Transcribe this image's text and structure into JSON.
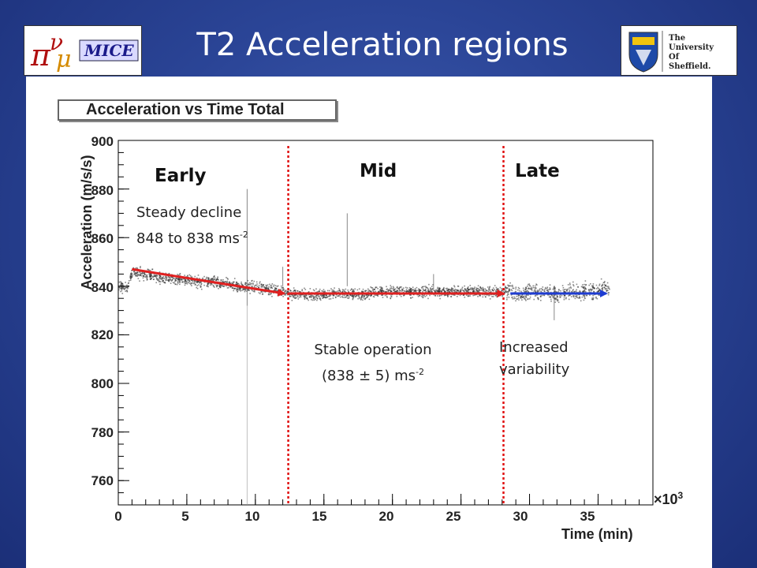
{
  "slide": {
    "title": "T2 Acceleration regions",
    "logo_left_text": "MICE",
    "logo_right_text": [
      "The",
      "University",
      "Of",
      "Sheffield."
    ]
  },
  "chart_data": {
    "type": "scatter",
    "title": "Acceleration vs Time Total",
    "xlabel": "Time (min)",
    "ylabel": "Acceleration (m/s/s)",
    "x_multiplier_label": "×10",
    "x_multiplier_exp": "3",
    "xlim": [
      0,
      39
    ],
    "ylim": [
      750,
      900
    ],
    "xticks": [
      "0",
      "5",
      "10",
      "15",
      "20",
      "25",
      "30",
      "35"
    ],
    "yticks": [
      "760",
      "780",
      "800",
      "820",
      "840",
      "860",
      "880",
      "900"
    ],
    "regions": [
      {
        "name": "Early",
        "start": 0,
        "end": 12.4
      },
      {
        "name": "Mid",
        "start": 12.4,
        "end": 28.1
      },
      {
        "name": "Late",
        "start": 28.1,
        "end": 36
      }
    ],
    "dividers_x": [
      12.4,
      28.1
    ],
    "series": [
      {
        "x": [
          0.0,
          0.6,
          1.0,
          2.0,
          3.0,
          4.0,
          5.0,
          6.0,
          7.0,
          8.0,
          9.0,
          10.0,
          11.0,
          12.0,
          13.0,
          14.0,
          15.0,
          16.0,
          17.0,
          18.0,
          19.0,
          20.0,
          21.0,
          22.0,
          23.0,
          24.0,
          25.0,
          26.0,
          27.0,
          28.0,
          28.5,
          29.0,
          30.0,
          31.0,
          32.0,
          33.0,
          34.0,
          35.0,
          35.8
        ],
        "y": [
          840,
          840,
          846,
          845,
          844,
          843,
          843,
          842,
          842,
          841,
          840,
          840,
          839,
          838,
          837,
          837,
          837,
          837,
          837,
          837,
          838,
          838,
          838,
          838,
          838,
          838,
          838,
          838,
          838,
          838,
          839,
          836,
          838,
          838,
          837,
          838,
          838,
          839,
          839
        ]
      }
    ],
    "trend_arrows": [
      {
        "color": "#e02020",
        "x": [
          1,
          12.1
        ],
        "y": [
          847,
          837
        ]
      },
      {
        "color": "#e02020",
        "x": [
          12.4,
          28.1
        ],
        "y": [
          837,
          837
        ]
      },
      {
        "color": "#1e3cd2",
        "x": [
          28.6,
          35.6
        ],
        "y": [
          837,
          837
        ]
      }
    ],
    "annotations": {
      "early_1": "Steady decline",
      "early_2": "848 to 838 ms",
      "early_2_sup": "-2",
      "mid_1": "Stable operation",
      "mid_2": "(838 ± 5) ms",
      "mid_2_sup": "-2",
      "late_1": "Increased",
      "late_2": "variability"
    },
    "legend": "none",
    "grid": false
  }
}
